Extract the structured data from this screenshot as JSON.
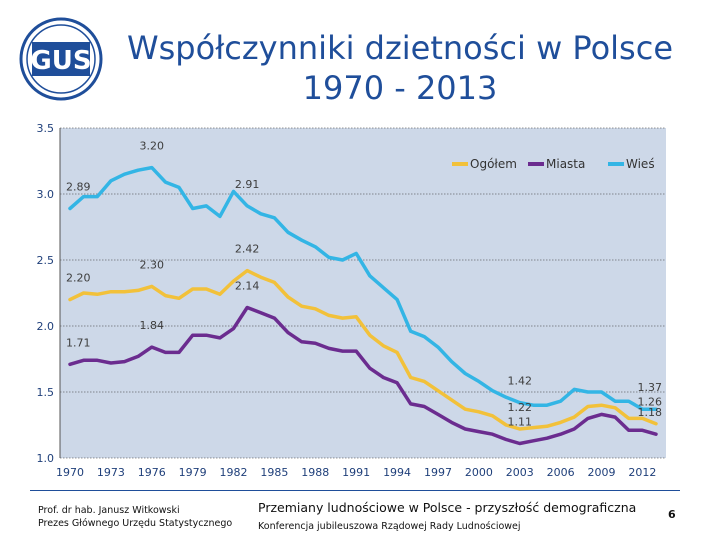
{
  "title": {
    "line1": "Współczynniki dzietności w Polsce",
    "line2": "1970 - 2013"
  },
  "logo": {
    "text": "GUS"
  },
  "colors": {
    "plot_bg": "#cdd8e8",
    "total": "#f2c13a",
    "urban": "#6b2c8f",
    "rural": "#33b5e5",
    "axis_text": "#1f3f7a"
  },
  "chart_data": {
    "type": "line",
    "ylim": [
      1.0,
      3.5
    ],
    "yticks": [
      "1.0",
      "1.5",
      "2.0",
      "2.5",
      "3.0",
      "3.5"
    ],
    "xlim": [
      1970,
      2013
    ],
    "xticks": [
      "1970",
      "1973",
      "1976",
      "1979",
      "1982",
      "1985",
      "1988",
      "1991",
      "1994",
      "1997",
      "2000",
      "2003",
      "2006",
      "2009",
      "2012"
    ],
    "legend_position": "top-right",
    "x": [
      1970,
      1971,
      1972,
      1973,
      1974,
      1975,
      1976,
      1977,
      1978,
      1979,
      1980,
      1981,
      1982,
      1983,
      1984,
      1985,
      1986,
      1987,
      1988,
      1989,
      1990,
      1991,
      1992,
      1993,
      1994,
      1995,
      1996,
      1997,
      1998,
      1999,
      2000,
      2001,
      2002,
      2003,
      2004,
      2005,
      2006,
      2007,
      2008,
      2009,
      2010,
      2011,
      2012,
      2013
    ],
    "series": [
      {
        "name": "Ogółem",
        "key": "total",
        "values": [
          2.2,
          2.25,
          2.24,
          2.26,
          2.26,
          2.27,
          2.3,
          2.23,
          2.21,
          2.28,
          2.28,
          2.24,
          2.34,
          2.42,
          2.37,
          2.33,
          2.22,
          2.15,
          2.13,
          2.08,
          2.06,
          2.07,
          1.93,
          1.85,
          1.8,
          1.61,
          1.58,
          1.51,
          1.44,
          1.37,
          1.35,
          1.32,
          1.25,
          1.22,
          1.23,
          1.24,
          1.27,
          1.31,
          1.39,
          1.4,
          1.38,
          1.3,
          1.3,
          1.26
        ]
      },
      {
        "name": "Miasta",
        "key": "urban",
        "values": [
          1.71,
          1.74,
          1.74,
          1.72,
          1.73,
          1.77,
          1.84,
          1.8,
          1.8,
          1.93,
          1.93,
          1.91,
          1.98,
          2.14,
          2.1,
          2.06,
          1.95,
          1.88,
          1.87,
          1.83,
          1.81,
          1.81,
          1.68,
          1.61,
          1.57,
          1.41,
          1.39,
          1.33,
          1.27,
          1.22,
          1.2,
          1.18,
          1.14,
          1.11,
          1.13,
          1.15,
          1.18,
          1.22,
          1.3,
          1.33,
          1.31,
          1.21,
          1.21,
          1.18
        ]
      },
      {
        "name": "Wieś",
        "key": "rural",
        "values": [
          2.89,
          2.98,
          2.98,
          3.1,
          3.15,
          3.18,
          3.2,
          3.09,
          3.05,
          2.89,
          2.91,
          2.83,
          3.02,
          2.91,
          2.85,
          2.82,
          2.71,
          2.65,
          2.6,
          2.52,
          2.5,
          2.55,
          2.38,
          2.29,
          2.2,
          1.96,
          1.92,
          1.84,
          1.73,
          1.64,
          1.58,
          1.51,
          1.46,
          1.42,
          1.4,
          1.4,
          1.43,
          1.52,
          1.5,
          1.5,
          1.43,
          1.43,
          1.37,
          1.37
        ]
      }
    ],
    "annotations": [
      {
        "text": "3.20",
        "x": 1976,
        "y": 3.2
      },
      {
        "text": "2.91",
        "x": 1983,
        "y": 2.91
      },
      {
        "text": "2.89",
        "x": 1970,
        "y": 2.89
      },
      {
        "text": "2.42",
        "x": 1983,
        "y": 2.42
      },
      {
        "text": "2.30",
        "x": 1976,
        "y": 2.3
      },
      {
        "text": "2.20",
        "x": 1970,
        "y": 2.2
      },
      {
        "text": "2.14",
        "x": 1983,
        "y": 2.14
      },
      {
        "text": "1.84",
        "x": 1976,
        "y": 1.84
      },
      {
        "text": "1.71",
        "x": 1970,
        "y": 1.71
      },
      {
        "text": "1.42",
        "x": 2003,
        "y": 1.42
      },
      {
        "text": "1.37",
        "x": 2013,
        "y": 1.37
      },
      {
        "text": "1.22",
        "x": 2003,
        "y": 1.22
      },
      {
        "text": "1.26",
        "x": 2013,
        "y": 1.26
      },
      {
        "text": "1.11",
        "x": 2003,
        "y": 1.11
      },
      {
        "text": "1.18",
        "x": 2013,
        "y": 1.18
      }
    ]
  },
  "footer": {
    "author_line1": "Prof. dr hab. Janusz Witkowski",
    "author_line2": "Prezes Głównego Urzędu Statystycznego",
    "conference_title": "Przemiany ludnościowe w Polsce -  przyszłość demograficzna",
    "conference_sub": "Konferencja jubileuszowa Rządowej Rady Ludnościowej",
    "page_number": "6"
  }
}
